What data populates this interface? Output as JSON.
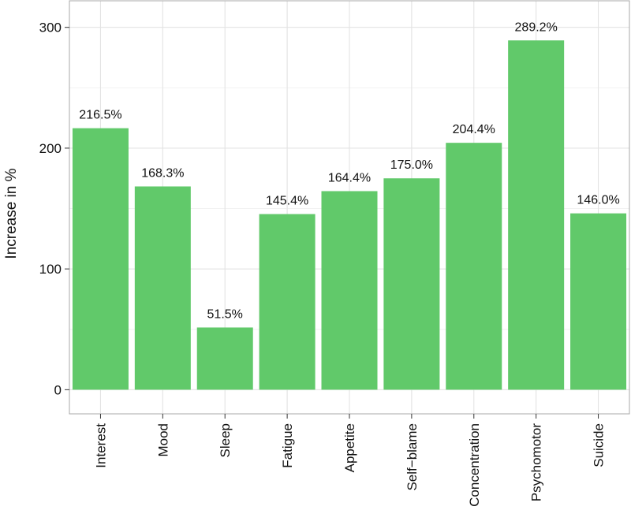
{
  "chart_data": {
    "type": "bar",
    "title": "",
    "xlabel": "",
    "ylabel": "Increase in %",
    "categories": [
      "Interest",
      "Mood",
      "Sleep",
      "Fatigue",
      "Appetite",
      "Self−blame",
      "Concentration",
      "Psychomotor",
      "Suicide"
    ],
    "values": [
      216.5,
      168.3,
      51.5,
      145.4,
      164.4,
      175.0,
      204.4,
      289.2,
      146.0
    ],
    "data_labels": [
      "216.5%",
      "168.3%",
      "51.5%",
      "145.4%",
      "164.4%",
      "175.0%",
      "204.4%",
      "289.2%",
      "146.0%"
    ],
    "ylim": [
      -20,
      322
    ],
    "yticks": [
      0,
      100,
      200,
      300
    ],
    "ytick_labels": [
      "0",
      "100",
      "200",
      "300"
    ],
    "grid": true,
    "legend": "none",
    "colors": {
      "bar": "#61c96a",
      "grid_major": "#e3e3e3",
      "grid_minor": "#f2f2f2",
      "border": "#a8a8a8",
      "text": "#111111"
    }
  }
}
